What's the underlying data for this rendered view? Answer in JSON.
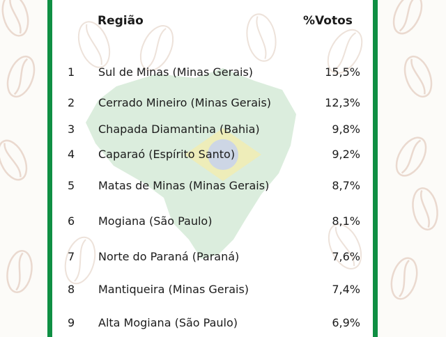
{
  "table": {
    "header_region": "Região",
    "header_votes": "%Votos",
    "rows": [
      {
        "rank": "1",
        "region": "Sul de Minas (Minas Gerais)",
        "votes": "15,5%"
      },
      {
        "rank": "2",
        "region": "Cerrado Mineiro (Minas Gerais)",
        "votes": "12,3%"
      },
      {
        "rank": "3",
        "region": "Chapada Diamantina (Bahia)",
        "votes": "9,8%"
      },
      {
        "rank": "4",
        "region": "Caparaó (Espírito Santo)",
        "votes": "9,2%"
      },
      {
        "rank": "5",
        "region": "Matas de Minas (Minas Gerais)",
        "votes": "8,7%"
      },
      {
        "rank": "6",
        "region": "Mogiana (São Paulo)",
        "votes": "8,1%"
      },
      {
        "rank": "7",
        "region": "Norte do Paraná (Paraná)",
        "votes": "7,6%"
      },
      {
        "rank": "8",
        "region": "Mantiqueira (Minas Gerais)",
        "votes": "7,4%"
      },
      {
        "rank": "9",
        "region": "Alta Mogiana (São Paulo)",
        "votes": "6,9%"
      }
    ]
  },
  "colors": {
    "frame": "#0f8f43",
    "background": "#fcfbf8",
    "bean_outline": "#ead9cf",
    "map_green": "#cfe7d2",
    "flag_yellow": "#f3ecb0",
    "flag_blue": "#c9d3ea"
  },
  "decorations": [
    "coffee-bean-icon",
    "brazil-map-watermark"
  ]
}
